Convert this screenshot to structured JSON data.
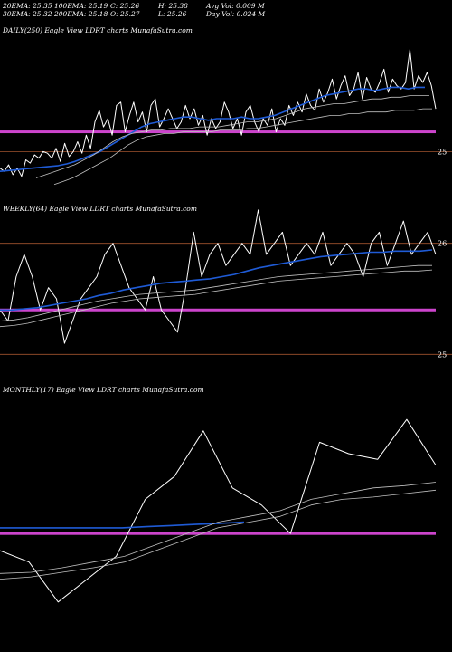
{
  "header": {
    "row1": [
      {
        "key": "ema20",
        "text": "20EMA: 25.35"
      },
      {
        "key": "ema100",
        "text": "100EMA: 25.19"
      },
      {
        "key": "close",
        "text": "C: 25.26"
      },
      {
        "key": "high",
        "text": "H: 25.38"
      },
      {
        "key": "avgvol",
        "text": "Avg Vol: 0.009 M"
      }
    ],
    "row2": [
      {
        "key": "ema30",
        "text": "30EMA: 25.32"
      },
      {
        "key": "ema200",
        "text": "200EMA: 25.18"
      },
      {
        "key": "open",
        "text": "O: 25.27"
      },
      {
        "key": "low",
        "text": "L: 25.26"
      },
      {
        "key": "dayvol",
        "text": "Day Vol: 0.024  M"
      }
    ]
  },
  "colors": {
    "background": "#000000",
    "price": "#ffffff",
    "ema_fast": "#1f5bd6",
    "ema_slow": "#c0c0c0",
    "support": "#cc44cc",
    "level": "#a0522d"
  },
  "chart_data": [
    {
      "type": "line",
      "title": "DAILY(250) Eagle   View  LDRT charts MunafaSutra.com",
      "y_tick_labels": [
        {
          "value": 25,
          "text": "25"
        }
      ],
      "ylim": [
        24.7,
        25.7
      ],
      "horizontal_levels": [
        {
          "value": 25,
          "color": "#a0522d"
        }
      ],
      "support_level": 25.12,
      "series": [
        {
          "role": "price",
          "values": [
            24.9,
            24.88,
            24.92,
            24.86,
            24.9,
            24.85,
            24.95,
            24.93,
            24.98,
            24.96,
            25.0,
            24.99,
            24.96,
            25.02,
            24.94,
            25.05,
            24.97,
            25.0,
            25.06,
            24.99,
            25.1,
            25.02,
            25.18,
            25.25,
            25.15,
            25.2,
            25.1,
            25.28,
            25.3,
            25.12,
            25.22,
            25.3,
            25.18,
            25.24,
            25.12,
            25.28,
            25.32,
            25.15,
            25.2,
            25.26,
            25.2,
            25.14,
            25.18,
            25.28,
            25.2,
            25.26,
            25.16,
            25.22,
            25.1,
            25.2,
            25.14,
            25.18,
            25.3,
            25.24,
            25.14,
            25.2,
            25.1,
            25.24,
            25.28,
            25.18,
            25.12,
            25.2,
            25.16,
            25.26,
            25.12,
            25.2,
            25.16,
            25.28,
            25.22,
            25.3,
            25.24,
            25.35,
            25.28,
            25.25,
            25.38,
            25.3,
            25.36,
            25.44,
            25.32,
            25.4,
            25.46,
            25.34,
            25.38,
            25.48,
            25.32,
            25.45,
            25.38,
            25.36,
            25.42,
            25.5,
            25.36,
            25.44,
            25.4,
            25.38,
            25.42,
            25.62,
            25.38,
            25.46,
            25.42,
            25.48,
            25.4,
            25.26
          ]
        },
        {
          "role": "ema_fast",
          "values": [
            24.88,
            24.885,
            24.89,
            24.895,
            24.9,
            24.905,
            24.91,
            24.915,
            24.925,
            24.94,
            24.96,
            24.98,
            25.0,
            25.03,
            25.06,
            25.09,
            25.12,
            25.15,
            25.17,
            25.18,
            25.19,
            25.2,
            25.21,
            25.21,
            25.2,
            25.19,
            25.2,
            25.2,
            25.2,
            25.21,
            25.2,
            25.2,
            25.21,
            25.22,
            25.24,
            25.26,
            25.28,
            25.3,
            25.32,
            25.34,
            25.35,
            25.36,
            25.37,
            25.38,
            25.38,
            25.37,
            25.38,
            25.39,
            25.39,
            25.38,
            25.39,
            25.39
          ]
        },
        {
          "role": "ema_slow_a",
          "values": [
            24.84,
            24.86,
            24.88,
            24.9,
            24.92,
            24.95,
            24.98,
            25.02,
            25.06,
            25.09,
            25.11,
            25.12,
            25.13,
            25.13,
            25.14,
            25.14,
            25.14,
            25.15,
            25.15,
            25.15,
            25.16,
            25.17,
            25.18,
            25.18,
            25.19,
            25.2,
            25.22,
            25.24,
            25.26,
            25.27,
            25.28,
            25.29,
            25.29,
            25.3,
            25.31,
            25.32,
            25.32,
            25.33,
            25.33,
            25.34,
            25.34,
            25.34
          ]
        },
        {
          "role": "ema_slow_b",
          "values": [
            24.8,
            24.82,
            24.84,
            24.87,
            24.9,
            24.93,
            24.96,
            25.0,
            25.04,
            25.07,
            25.09,
            25.1,
            25.11,
            25.11,
            25.12,
            25.12,
            25.12,
            25.12,
            25.13,
            25.13,
            25.13,
            25.14,
            25.14,
            25.15,
            25.16,
            25.17,
            25.18,
            25.19,
            25.2,
            25.21,
            25.22,
            25.22,
            25.23,
            25.23,
            25.24,
            25.24,
            25.24,
            25.25,
            25.25,
            25.25,
            25.26,
            25.26
          ]
        }
      ]
    },
    {
      "type": "line",
      "title": "WEEKLY(64) Eagle   View  LDRT charts MunafaSutra.com",
      "y_tick_labels": [
        {
          "value": 26,
          "text": "26"
        },
        {
          "value": 25,
          "text": "25"
        }
      ],
      "ylim": [
        24.75,
        26.25
      ],
      "horizontal_levels": [
        {
          "value": 26,
          "color": "#a0522d"
        },
        {
          "value": 25,
          "color": "#a0522d"
        }
      ],
      "support_level": 25.4,
      "series": [
        {
          "role": "price",
          "values": [
            25.4,
            25.3,
            25.7,
            25.9,
            25.7,
            25.4,
            25.6,
            25.5,
            25.1,
            25.3,
            25.5,
            25.6,
            25.7,
            25.9,
            26.0,
            25.8,
            25.6,
            25.5,
            25.4,
            25.7,
            25.4,
            25.3,
            25.2,
            25.6,
            26.1,
            25.7,
            25.9,
            26.0,
            25.8,
            25.9,
            26.0,
            25.9,
            26.3,
            25.9,
            26.0,
            26.1,
            25.8,
            25.9,
            26.0,
            25.9,
            26.1,
            25.8,
            25.9,
            26.0,
            25.9,
            25.7,
            26.0,
            26.1,
            25.8,
            26.0,
            26.2,
            25.9,
            26.0,
            26.1,
            25.9
          ]
        },
        {
          "role": "ema_fast",
          "values": [
            25.4,
            25.4,
            25.41,
            25.42,
            25.44,
            25.46,
            25.48,
            25.5,
            25.53,
            25.55,
            25.58,
            25.6,
            25.62,
            25.64,
            25.65,
            25.66,
            25.67,
            25.68,
            25.7,
            25.72,
            25.75,
            25.78,
            25.8,
            25.82,
            25.84,
            25.86,
            25.88,
            25.89,
            25.9,
            25.91,
            25.92,
            25.92,
            25.93,
            25.93,
            25.93,
            25.94
          ]
        },
        {
          "role": "ema_slow_a",
          "values": [
            25.3,
            25.31,
            25.33,
            25.36,
            25.39,
            25.42,
            25.45,
            25.48,
            25.5,
            25.52,
            25.54,
            25.55,
            25.56,
            25.57,
            25.58,
            25.6,
            25.62,
            25.64,
            25.66,
            25.68,
            25.7,
            25.71,
            25.72,
            25.73,
            25.74,
            25.75,
            25.76,
            25.77,
            25.78,
            25.79,
            25.8,
            25.8
          ]
        },
        {
          "role": "ema_slow_b",
          "values": [
            25.25,
            25.26,
            25.28,
            25.31,
            25.34,
            25.37,
            25.4,
            25.43,
            25.46,
            25.48,
            25.5,
            25.51,
            25.52,
            25.53,
            25.54,
            25.56,
            25.58,
            25.6,
            25.62,
            25.64,
            25.66,
            25.67,
            25.68,
            25.69,
            25.7,
            25.71,
            25.72,
            25.73,
            25.74,
            25.75,
            25.75,
            25.76
          ]
        }
      ]
    },
    {
      "type": "line",
      "title": "MONTHLY(17) Eagle   View  LDRT charts MunafaSutra.com",
      "y_tick_labels": [],
      "ylim": [
        24.5,
        26.5
      ],
      "horizontal_levels": [],
      "support_level": 25.3,
      "series": [
        {
          "role": "price",
          "values": [
            25.15,
            25.05,
            24.7,
            24.9,
            25.1,
            25.6,
            25.8,
            26.2,
            25.7,
            25.55,
            25.3,
            26.1,
            26.0,
            25.95,
            26.3,
            25.9
          ]
        },
        {
          "role": "ema_fast",
          "values": [
            25.35,
            25.35,
            25.35,
            25.35,
            25.35,
            25.35,
            25.36,
            25.37,
            25.38,
            25.39,
            25.4
          ]
        },
        {
          "role": "ema_slow_a",
          "values": [
            24.95,
            24.96,
            25.0,
            25.05,
            25.1,
            25.2,
            25.3,
            25.4,
            25.45,
            25.5,
            25.6,
            25.65,
            25.7,
            25.72,
            25.75
          ]
        },
        {
          "role": "ema_slow_b",
          "values": [
            24.9,
            24.92,
            24.96,
            25.0,
            25.05,
            25.15,
            25.25,
            25.35,
            25.4,
            25.45,
            25.55,
            25.6,
            25.62,
            25.65,
            25.68
          ]
        }
      ]
    }
  ]
}
